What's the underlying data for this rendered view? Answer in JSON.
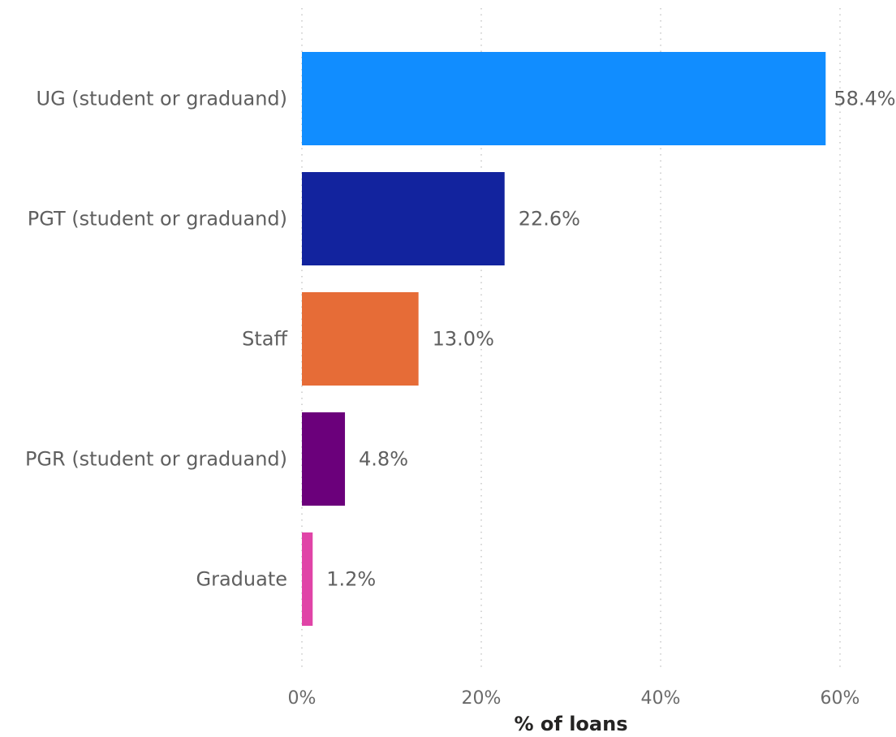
{
  "chart_data": {
    "type": "bar",
    "orientation": "horizontal",
    "categories": [
      "UG (student or graduand)",
      "PGT (student or graduand)",
      "Staff",
      "PGR (student or graduand)",
      "Graduate"
    ],
    "values": [
      58.4,
      22.6,
      13.0,
      4.8,
      1.2
    ],
    "value_labels": [
      "58.4%",
      "22.6%",
      "13.0%",
      "4.8%",
      "1.2%"
    ],
    "colors": [
      "#118DFF",
      "#12239E",
      "#E66C37",
      "#6B007B",
      "#E044A7"
    ],
    "xlabel": "% of loans",
    "xlim": [
      0,
      60
    ],
    "xticks": [
      0,
      20,
      40,
      60
    ],
    "xtick_labels": [
      "0%",
      "20%",
      "40%",
      "60%"
    ],
    "grid": "vertical-dotted"
  }
}
